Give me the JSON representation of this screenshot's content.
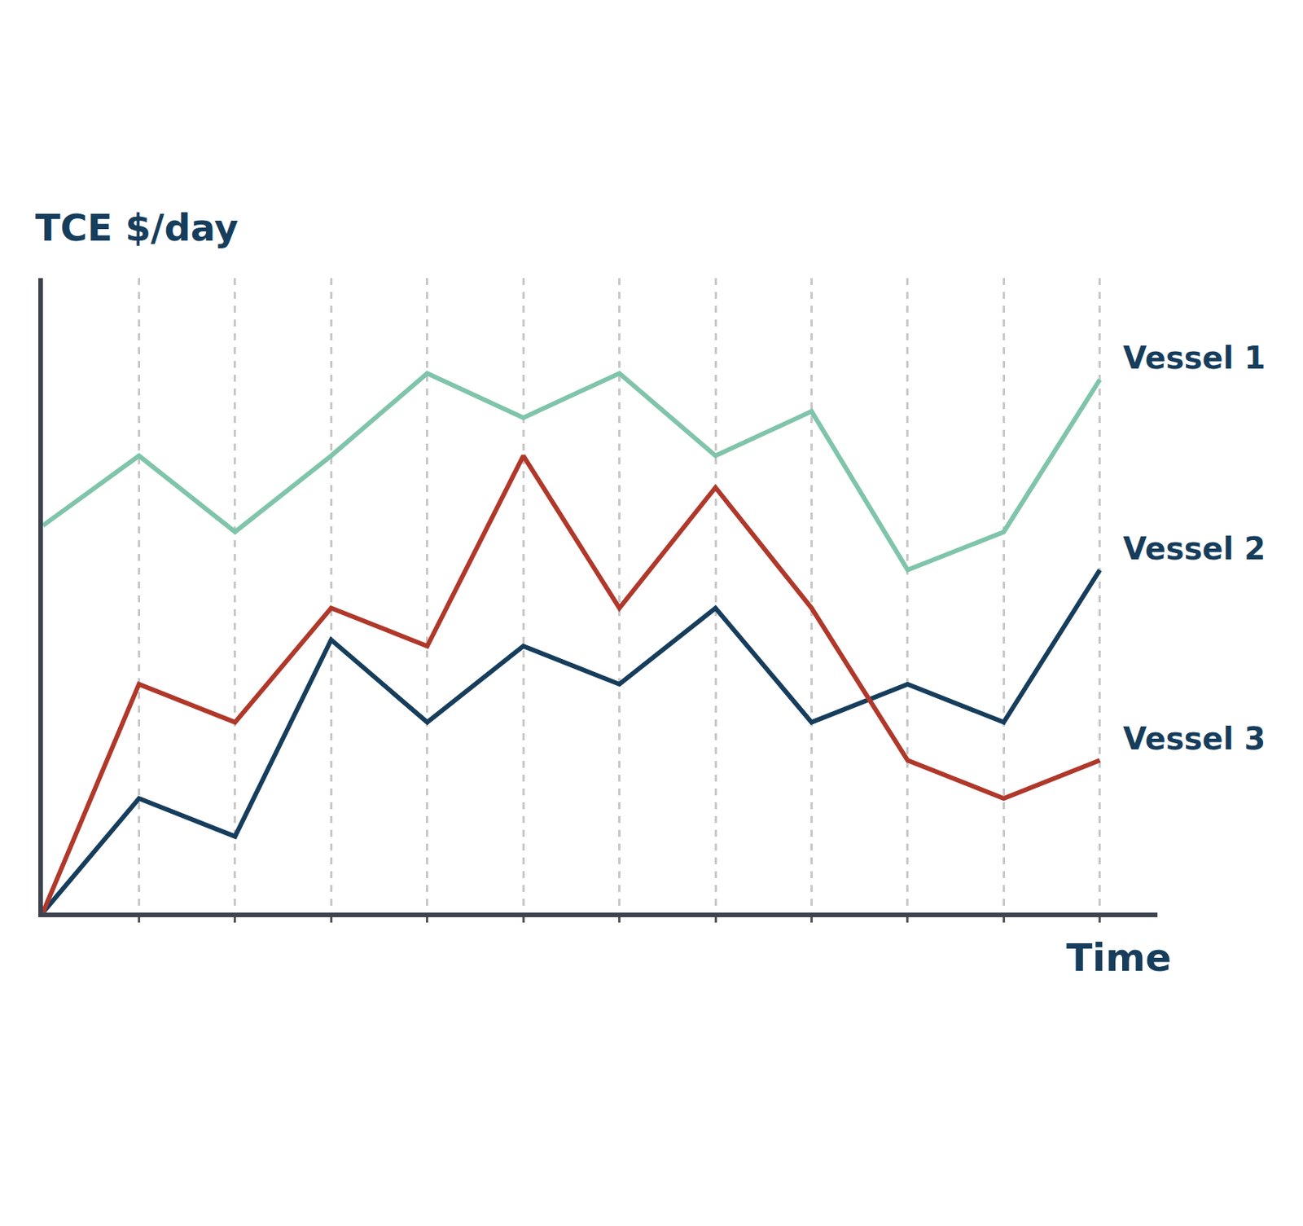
{
  "chart_data": {
    "type": "line",
    "x_label": "Time",
    "y_label": "TCE $/day",
    "x": [
      0,
      1,
      2,
      3,
      4,
      5,
      6,
      7,
      8,
      9,
      10,
      11
    ],
    "xlim": [
      0,
      11.6
    ],
    "xticks": [
      1,
      2,
      3,
      4,
      5,
      6,
      7,
      8,
      9,
      10,
      11
    ],
    "ylim": [
      0,
      100
    ],
    "yticks": [],
    "grid": true,
    "tick_labels": false,
    "series": [
      {
        "name": "Vessel 1",
        "color": "#7fc4ab",
        "values": [
          61,
          72,
          60,
          72,
          85,
          78,
          85,
          72,
          79,
          54,
          60,
          84
        ]
      },
      {
        "name": "Vessel 2",
        "color": "#163d5c",
        "values": [
          0,
          18,
          12,
          43,
          30,
          42,
          36,
          48,
          30,
          36,
          30,
          54
        ]
      },
      {
        "name": "Vessel 3",
        "color": "#b0382a",
        "values": [
          0,
          36,
          30,
          48,
          42,
          72,
          48,
          67,
          48,
          24,
          18,
          24
        ]
      }
    ]
  }
}
